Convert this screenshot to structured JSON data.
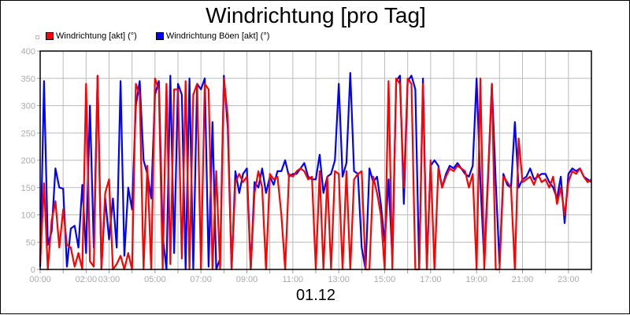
{
  "chart_data": {
    "type": "line",
    "title": "Windrichtung [pro Tag]",
    "xlabel": "01.12",
    "ylabel": "",
    "ylim": [
      0,
      400
    ],
    "yticks": [
      0,
      50,
      100,
      150,
      200,
      250,
      300,
      350,
      400
    ],
    "xlim_hours": [
      0,
      24
    ],
    "xtick_labels": [
      {
        "h": 0,
        "label": "00:00"
      },
      {
        "h": 2,
        "label": "02:00"
      },
      {
        "h": 3,
        "label": "03:00"
      },
      {
        "h": 5,
        "label": "05:00"
      },
      {
        "h": 7,
        "label": "07:00"
      },
      {
        "h": 9,
        "label": "09:00"
      },
      {
        "h": 11,
        "label": "11:00"
      },
      {
        "h": 13,
        "label": "13:00"
      },
      {
        "h": 15,
        "label": "15:00"
      },
      {
        "h": 17,
        "label": "17:00"
      },
      {
        "h": 19,
        "label": "19:00"
      },
      {
        "h": 21,
        "label": "21:00"
      },
      {
        "h": 23,
        "label": "23:00"
      }
    ],
    "grid": true,
    "legend_position": "top-left",
    "x_step_minutes": 10,
    "series": [
      {
        "name": "Windrichtung [akt] (°)",
        "color": "#ff0000",
        "values": [
          10,
          158,
          0,
          90,
          125,
          40,
          110,
          45,
          40,
          5,
          30,
          0,
          340,
          15,
          5,
          355,
          0,
          140,
          165,
          0,
          10,
          25,
          0,
          30,
          0,
          340,
          320,
          0,
          190,
          0,
          350,
          330,
          0,
          340,
          10,
          330,
          330,
          20,
          345,
          0,
          320,
          340,
          0,
          340,
          330,
          0,
          180,
          0,
          350,
          280,
          0,
          160,
          175,
          160,
          170,
          0,
          140,
          180,
          150,
          0,
          175,
          165,
          170,
          100,
          0,
          175,
          170,
          180,
          185,
          180,
          165,
          170,
          0,
          180,
          0,
          170,
          0,
          180,
          175,
          0,
          180,
          0,
          165,
          175,
          180,
          0,
          0,
          170,
          140,
          100,
          0,
          345,
          0,
          350,
          340,
          150,
          350,
          340,
          0,
          0,
          340,
          0,
          200,
          0,
          185,
          150,
          170,
          185,
          180,
          190,
          185,
          180,
          150,
          175,
          0,
          350,
          0,
          165,
          340,
          0,
          0,
          170,
          160,
          150,
          0,
          240,
          160,
          165,
          170,
          155,
          175,
          160,
          165,
          150,
          170,
          120,
          150,
          100,
          160,
          180,
          175,
          185,
          170,
          160,
          165
        ]
      },
      {
        "name": "Windrichtung Böen [akt] (°)",
        "color": "#0000ff",
        "values": [
          5,
          345,
          45,
          70,
          185,
          150,
          148,
          5,
          75,
          80,
          40,
          155,
          30,
          300,
          40,
          355,
          0,
          130,
          55,
          130,
          40,
          345,
          25,
          150,
          110,
          300,
          345,
          200,
          175,
          130,
          320,
          345,
          60,
          0,
          355,
          30,
          340,
          320,
          0,
          350,
          0,
          340,
          330,
          350,
          5,
          270,
          0,
          20,
          355,
          260,
          0,
          180,
          140,
          175,
          185,
          0,
          160,
          150,
          185,
          140,
          170,
          155,
          180,
          180,
          200,
          170,
          175,
          175,
          185,
          195,
          170,
          165,
          165,
          210,
          140,
          170,
          175,
          200,
          340,
          170,
          195,
          360,
          180,
          175,
          40,
          0,
          185,
          160,
          170,
          120,
          50,
          165,
          20,
          345,
          355,
          120,
          345,
          355,
          330,
          0,
          350,
          10,
          190,
          200,
          190,
          150,
          175,
          190,
          185,
          195,
          185,
          175,
          170,
          190,
          350,
          160,
          15,
          175,
          340,
          160,
          10,
          175,
          155,
          150,
          270,
          150,
          165,
          170,
          185,
          165,
          170,
          175,
          175,
          160,
          150,
          130,
          170,
          85,
          175,
          185,
          180,
          185,
          170,
          165,
          160
        ]
      }
    ]
  },
  "header": {
    "title": "Windrichtung [pro Tag]"
  },
  "legend": {
    "items": [
      {
        "label": "Windrichtung [akt] (°)",
        "color": "#ff0000"
      },
      {
        "label": "Windrichtung Böen [akt] (°)",
        "color": "#0000ff"
      }
    ]
  },
  "footer": {
    "date_label": "01.12"
  }
}
